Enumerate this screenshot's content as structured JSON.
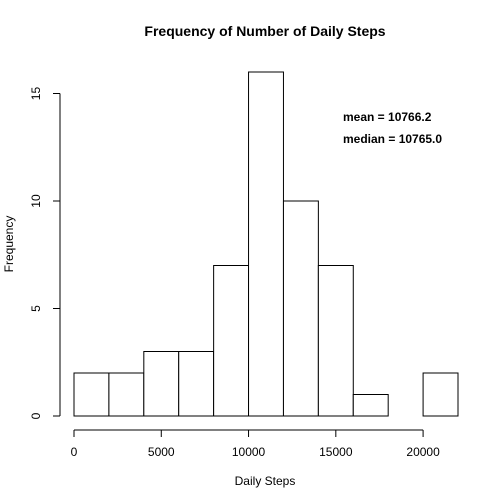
{
  "chart_data": {
    "type": "bar",
    "title": "Frequency of Number of Daily Steps",
    "xlabel": "Daily Steps",
    "ylabel": "Frequency",
    "bins": [
      {
        "start": 0,
        "end": 2000,
        "count": 2
      },
      {
        "start": 2000,
        "end": 4000,
        "count": 2
      },
      {
        "start": 4000,
        "end": 6000,
        "count": 3
      },
      {
        "start": 6000,
        "end": 8000,
        "count": 3
      },
      {
        "start": 8000,
        "end": 10000,
        "count": 7
      },
      {
        "start": 10000,
        "end": 12000,
        "count": 16
      },
      {
        "start": 12000,
        "end": 14000,
        "count": 10
      },
      {
        "start": 14000,
        "end": 16000,
        "count": 7
      },
      {
        "start": 16000,
        "end": 18000,
        "count": 1
      },
      {
        "start": 18000,
        "end": 20000,
        "count": 0
      },
      {
        "start": 20000,
        "end": 22000,
        "count": 2
      }
    ],
    "xticks": [
      0,
      5000,
      10000,
      15000,
      20000
    ],
    "yticks": [
      0,
      5,
      10,
      15
    ],
    "xlim": [
      0,
      22000
    ],
    "ylim": [
      0,
      16
    ],
    "grid": false,
    "annotations": [
      "mean = 10766.2",
      "median = 10765.0"
    ]
  }
}
